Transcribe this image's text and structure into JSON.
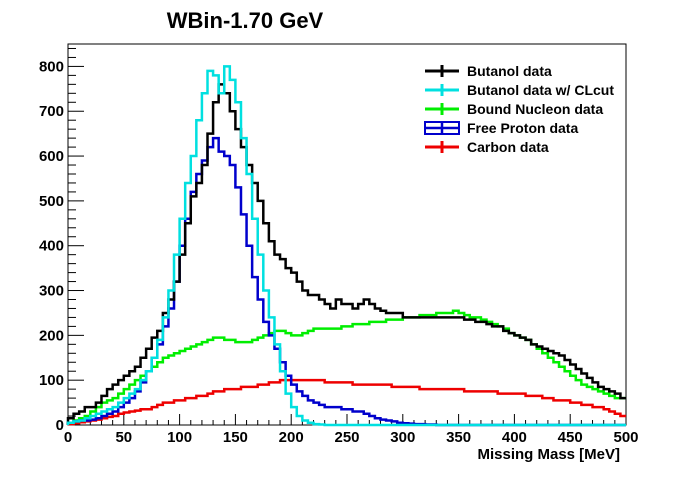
{
  "chart_data": {
    "type": "line",
    "title": "WBin-1.70 GeV",
    "xlabel": "Missing Mass [MeV]",
    "ylabel": "",
    "xlim": [
      0,
      500
    ],
    "ylim": [
      0,
      850
    ],
    "x_ticks": [
      "0",
      "50",
      "100",
      "150",
      "200",
      "250",
      "300",
      "350",
      "400",
      "450",
      "500"
    ],
    "y_ticks": [
      "0",
      "100",
      "200",
      "300",
      "400",
      "500",
      "600",
      "700",
      "800"
    ],
    "grid": false,
    "legend_position": "top-right",
    "bin_width": 5,
    "x": [
      2.5,
      7.5,
      12.5,
      17.5,
      22.5,
      27.5,
      32.5,
      37.5,
      42.5,
      47.5,
      52.5,
      57.5,
      62.5,
      67.5,
      72.5,
      77.5,
      82.5,
      87.5,
      92.5,
      97.5,
      102.5,
      107.5,
      112.5,
      117.5,
      122.5,
      127.5,
      132.5,
      137.5,
      142.5,
      147.5,
      152.5,
      157.5,
      162.5,
      167.5,
      172.5,
      177.5,
      182.5,
      187.5,
      192.5,
      197.5,
      202.5,
      207.5,
      212.5,
      217.5,
      222.5,
      227.5,
      232.5,
      237.5,
      242.5,
      247.5,
      252.5,
      257.5,
      262.5,
      267.5,
      272.5,
      277.5,
      282.5,
      287.5,
      292.5,
      297.5,
      302.5,
      307.5,
      312.5,
      317.5,
      322.5,
      327.5,
      332.5,
      337.5,
      342.5,
      347.5,
      352.5,
      357.5,
      362.5,
      367.5,
      372.5,
      377.5,
      382.5,
      387.5,
      392.5,
      397.5,
      402.5,
      407.5,
      412.5,
      417.5,
      422.5,
      427.5,
      432.5,
      437.5,
      442.5,
      447.5,
      452.5,
      457.5,
      462.5,
      467.5,
      472.5,
      477.5,
      482.5,
      487.5,
      492.5,
      497.5
    ],
    "series": [
      {
        "name": "Butanol data",
        "color": "#000000",
        "values": [
          15,
          25,
          30,
          40,
          40,
          50,
          65,
          80,
          90,
          100,
          110,
          120,
          130,
          150,
          170,
          195,
          210,
          250,
          280,
          320,
          380,
          450,
          510,
          540,
          580,
          650,
          720,
          760,
          740,
          700,
          660,
          620,
          580,
          540,
          500,
          450,
          410,
          380,
          370,
          350,
          340,
          320,
          300,
          290,
          290,
          280,
          270,
          260,
          280,
          270,
          270,
          260,
          270,
          280,
          270,
          260,
          255,
          250,
          250,
          250,
          240,
          240,
          240,
          240,
          240,
          240,
          240,
          240,
          240,
          240,
          240,
          235,
          235,
          230,
          230,
          225,
          220,
          220,
          210,
          205,
          200,
          195,
          190,
          180,
          175,
          170,
          165,
          160,
          155,
          145,
          135,
          125,
          115,
          105,
          95,
          85,
          80,
          75,
          70,
          60
        ]
      },
      {
        "name": "Butanol data w/ CLcut",
        "color": "#00e0e0",
        "values": [
          5,
          8,
          10,
          15,
          20,
          25,
          30,
          35,
          40,
          50,
          60,
          70,
          80,
          100,
          120,
          150,
          190,
          240,
          300,
          380,
          460,
          540,
          600,
          680,
          740,
          790,
          780,
          740,
          800,
          770,
          720,
          640,
          560,
          460,
          380,
          300,
          240,
          180,
          120,
          70,
          40,
          20,
          10,
          5,
          2,
          1,
          0,
          0,
          0,
          0,
          0,
          0,
          0,
          0,
          0,
          0,
          0,
          0,
          0,
          0,
          0,
          0,
          0,
          0,
          0,
          0,
          0,
          0,
          0,
          0,
          0,
          0,
          0,
          0,
          0,
          0,
          0,
          0,
          0,
          0,
          0,
          0,
          0,
          0,
          0,
          0,
          0,
          0,
          0,
          0,
          0,
          0,
          0,
          0,
          0,
          0,
          0,
          0,
          0,
          0
        ]
      },
      {
        "name": "Bound Nucleon data",
        "color": "#00ee00",
        "values": [
          5,
          10,
          15,
          20,
          30,
          40,
          50,
          55,
          60,
          70,
          80,
          90,
          100,
          110,
          120,
          130,
          140,
          150,
          155,
          160,
          165,
          170,
          175,
          180,
          185,
          190,
          195,
          195,
          190,
          190,
          185,
          185,
          185,
          190,
          195,
          200,
          205,
          210,
          210,
          205,
          200,
          200,
          205,
          210,
          215,
          215,
          215,
          215,
          215,
          220,
          220,
          225,
          225,
          225,
          230,
          230,
          230,
          235,
          235,
          235,
          240,
          240,
          240,
          245,
          245,
          245,
          250,
          250,
          250,
          255,
          250,
          245,
          240,
          240,
          235,
          230,
          225,
          220,
          215,
          205,
          200,
          195,
          190,
          180,
          170,
          160,
          150,
          140,
          130,
          120,
          110,
          100,
          90,
          85,
          80,
          75,
          70,
          65,
          60,
          60
        ]
      },
      {
        "name": "Free Proton data",
        "color": "#0000cc",
        "values": [
          5,
          8,
          10,
          10,
          12,
          15,
          20,
          25,
          30,
          40,
          50,
          60,
          75,
          95,
          120,
          150,
          180,
          220,
          260,
          320,
          400,
          460,
          520,
          560,
          590,
          620,
          640,
          610,
          600,
          580,
          530,
          470,
          400,
          330,
          280,
          230,
          200,
          170,
          140,
          110,
          90,
          75,
          65,
          55,
          50,
          45,
          40,
          40,
          40,
          35,
          35,
          30,
          30,
          25,
          20,
          15,
          12,
          10,
          8,
          5,
          4,
          3,
          2,
          2,
          1,
          1,
          0,
          0,
          0,
          0,
          0,
          0,
          0,
          0,
          0,
          0,
          0,
          0,
          0,
          0,
          0,
          0,
          0,
          0,
          0,
          0,
          0,
          0,
          0,
          0,
          0,
          0,
          0,
          0,
          0,
          0,
          0,
          0,
          0,
          0
        ]
      },
      {
        "name": "Carbon data",
        "color": "#ee0000",
        "values": [
          2,
          4,
          6,
          8,
          10,
          12,
          15,
          18,
          20,
          25,
          28,
          30,
          32,
          35,
          35,
          40,
          45,
          50,
          50,
          55,
          55,
          60,
          60,
          65,
          65,
          70,
          75,
          75,
          80,
          80,
          80,
          85,
          85,
          85,
          90,
          90,
          95,
          95,
          100,
          100,
          100,
          100,
          100,
          100,
          100,
          100,
          95,
          95,
          95,
          95,
          95,
          90,
          90,
          90,
          90,
          90,
          90,
          90,
          85,
          85,
          85,
          85,
          85,
          80,
          80,
          80,
          80,
          80,
          80,
          80,
          80,
          75,
          75,
          75,
          75,
          75,
          75,
          70,
          70,
          70,
          70,
          70,
          65,
          65,
          65,
          60,
          60,
          55,
          55,
          55,
          50,
          50,
          45,
          45,
          40,
          40,
          35,
          30,
          25,
          20
        ]
      }
    ]
  }
}
